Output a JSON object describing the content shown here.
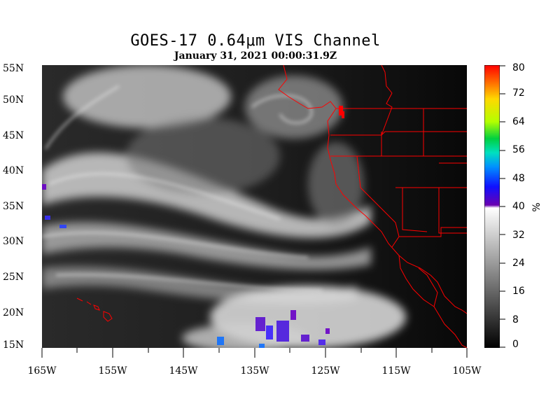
{
  "title": "GOES-17  0.64μm VIS Channel",
  "subtitle": "January 31,  2021 00:00:31.9Z",
  "lat_labels": [
    "55N",
    "50N",
    "45N",
    "40N",
    "35N",
    "30N",
    "25N",
    "20N",
    "15N"
  ],
  "lon_labels": [
    "165W",
    "155W",
    "145W",
    "135W",
    "125W",
    "115W",
    "105W"
  ],
  "colorbar": {
    "ticks": [
      "80",
      "72",
      "64",
      "56",
      "48",
      "40",
      "32",
      "24",
      "16",
      "8",
      "0"
    ],
    "unit": "%",
    "gray_range": [
      0,
      40
    ],
    "color_range": [
      40,
      80
    ]
  },
  "colors": {
    "boundary": "#ff0000",
    "background": "#ffffff"
  }
}
